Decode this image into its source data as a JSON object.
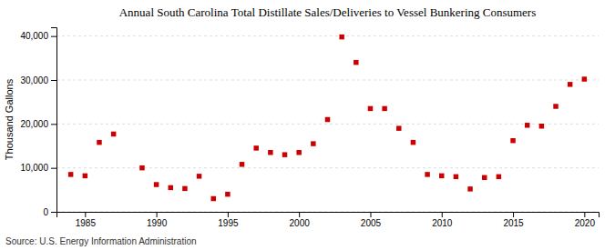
{
  "chart_data": {
    "type": "scatter",
    "title": "Annual South Carolina Total Distillate Sales/Deliveries to Vessel Bunkering Consumers",
    "y_label": "Thousand Gallons",
    "annotations": [
      "Source: U.S. Energy Information Administration"
    ],
    "x": [
      1984,
      1985,
      1986,
      1987,
      1989,
      1990,
      1991,
      1992,
      1993,
      1994,
      1995,
      1996,
      1997,
      1998,
      1999,
      2000,
      2001,
      2002,
      2003,
      2004,
      2005,
      2006,
      2007,
      2008,
      2009,
      2010,
      2011,
      2012,
      2013,
      2014,
      2015,
      2016,
      2017,
      2018,
      2019,
      2020
    ],
    "values": [
      8500,
      8200,
      15800,
      17700,
      10000,
      6200,
      5500,
      5300,
      8100,
      3000,
      4000,
      10800,
      14500,
      13500,
      13000,
      13500,
      15500,
      21000,
      39800,
      34000,
      23500,
      23500,
      19000,
      15800,
      8500,
      8200,
      8000,
      5200,
      7800,
      8000,
      16200,
      19700,
      19500,
      24000,
      29000,
      30200
    ],
    "color": "#cc0000",
    "marker": "square",
    "xlim": [
      1983,
      2021
    ],
    "xticks": [
      1985,
      1990,
      1995,
      2000,
      2005,
      2010,
      2015,
      2020
    ],
    "ylim": [
      0,
      42000
    ],
    "yticks": [
      0,
      {
        "value": 10000,
        "label": "10,000"
      },
      {
        "value": 20000,
        "label": "20,000"
      },
      {
        "value": 30000,
        "label": "30,000"
      },
      {
        "value": 40000,
        "label": "40,000"
      }
    ],
    "grid": true
  }
}
